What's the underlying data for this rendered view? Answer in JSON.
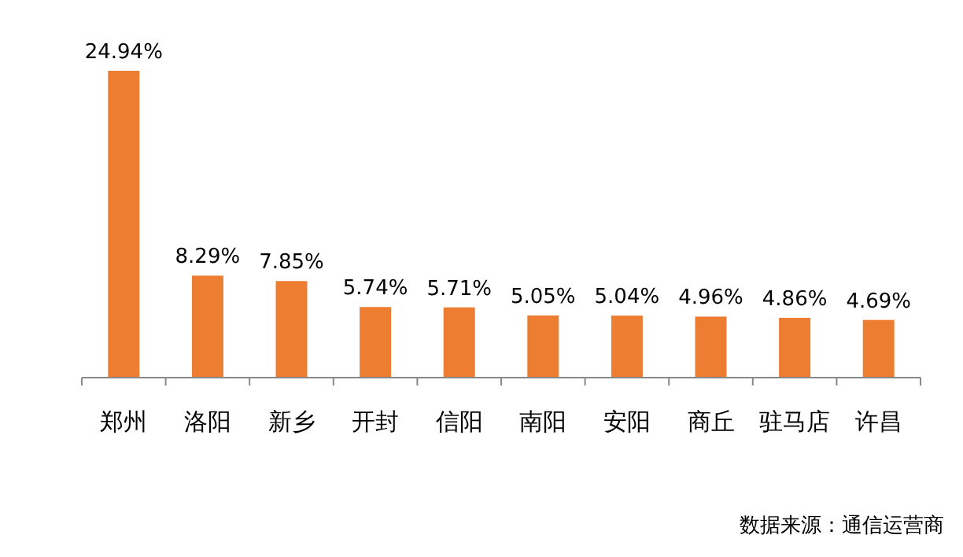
{
  "chart_data": {
    "type": "bar",
    "categories": [
      "郑州",
      "洛阳",
      "新乡",
      "开封",
      "信阳",
      "南阳",
      "安阳",
      "商丘",
      "驻马店",
      "许昌"
    ],
    "values": [
      24.94,
      8.29,
      7.85,
      5.74,
      5.71,
      5.05,
      5.04,
      4.96,
      4.86,
      4.69
    ],
    "value_labels": [
      "24.94%",
      "8.29%",
      "7.85%",
      "5.74%",
      "5.71%",
      "5.05%",
      "5.04%",
      "4.96%",
      "4.86%",
      "4.69%"
    ],
    "color": "#ed7d31",
    "annotations": [
      "数据来源：通信运营商"
    ]
  }
}
